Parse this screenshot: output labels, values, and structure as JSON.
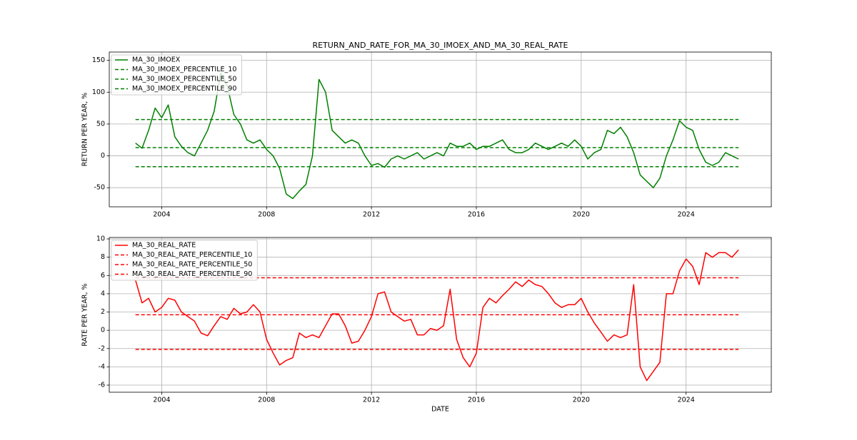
{
  "chart_data": [
    {
      "type": "line",
      "title": "RETURN_AND_RATE_FOR_MA_30_IMOEX_AND_MA_30_REAL_RATE",
      "ylabel": "RETURN PER YEAR, %",
      "xlim": [
        2002.0,
        2027.25
      ],
      "xticks": [
        2004,
        2008,
        2012,
        2016,
        2020,
        2024
      ],
      "ylim": [
        -80,
        163
      ],
      "yticks": [
        -50,
        0,
        50,
        100,
        150
      ],
      "grid": true,
      "legend": "upper left",
      "x": [
        2003.0,
        2003.25,
        2003.5,
        2003.75,
        2004.0,
        2004.25,
        2004.5,
        2004.75,
        2005.0,
        2005.25,
        2005.5,
        2005.75,
        2006.0,
        2006.25,
        2006.5,
        2006.75,
        2007.0,
        2007.25,
        2007.5,
        2007.75,
        2008.0,
        2008.25,
        2008.5,
        2008.75,
        2009.0,
        2009.25,
        2009.5,
        2009.75,
        2010.0,
        2010.25,
        2010.5,
        2010.75,
        2011.0,
        2011.25,
        2011.5,
        2011.75,
        2012.0,
        2012.25,
        2012.5,
        2012.75,
        2013.0,
        2013.25,
        2013.5,
        2013.75,
        2014.0,
        2014.25,
        2014.5,
        2014.75,
        2015.0,
        2015.25,
        2015.5,
        2015.75,
        2016.0,
        2016.25,
        2016.5,
        2016.75,
        2017.0,
        2017.25,
        2017.5,
        2017.75,
        2018.0,
        2018.25,
        2018.5,
        2018.75,
        2019.0,
        2019.25,
        2019.5,
        2019.75,
        2020.0,
        2020.25,
        2020.5,
        2020.75,
        2021.0,
        2021.25,
        2021.5,
        2021.75,
        2022.0,
        2022.25,
        2022.5,
        2022.75,
        2023.0,
        2023.25,
        2023.5,
        2023.75,
        2024.0,
        2024.25,
        2024.5,
        2024.75,
        2025.0,
        2025.25,
        2025.5,
        2025.75,
        2026.0
      ],
      "series": [
        {
          "name": "MA_30_IMOEX",
          "color": "#008000",
          "linestyle": "solid",
          "values": [
            20,
            12,
            40,
            75,
            60,
            80,
            30,
            15,
            5,
            0,
            20,
            40,
            70,
            130,
            110,
            65,
            50,
            25,
            20,
            25,
            10,
            0,
            -20,
            -60,
            -67,
            -55,
            -45,
            0,
            120,
            100,
            40,
            30,
            20,
            25,
            20,
            0,
            -15,
            -12,
            -18,
            -5,
            0,
            -5,
            0,
            5,
            -5,
            0,
            5,
            0,
            20,
            15,
            15,
            20,
            10,
            15,
            15,
            20,
            25,
            10,
            5,
            5,
            10,
            20,
            15,
            10,
            15,
            20,
            15,
            25,
            15,
            -5,
            5,
            10,
            40,
            35,
            45,
            30,
            5,
            -30,
            -40,
            -50,
            -35,
            0,
            25,
            55,
            45,
            40,
            10,
            -10,
            -15,
            -10,
            5,
            0,
            -5
          ]
        },
        {
          "name": "MA_30_IMOEX_PERCENTILE_10",
          "color": "#008000",
          "linestyle": "dashed",
          "level": 57
        },
        {
          "name": "MA_30_IMOEX_PERCENTILE_50",
          "color": "#008000",
          "linestyle": "dashed",
          "level": 13
        },
        {
          "name": "MA_30_IMOEX_PERCENTILE_90",
          "color": "#008000",
          "linestyle": "dashed",
          "level": -17
        }
      ]
    },
    {
      "type": "line",
      "xlabel": "DATE",
      "ylabel": "RATE PER YEAR, %",
      "xlim": [
        2002.0,
        2027.25
      ],
      "xticks": [
        2004,
        2008,
        2012,
        2016,
        2020,
        2024
      ],
      "ylim": [
        -6.78,
        10.16
      ],
      "yticks": [
        -6,
        -4,
        -2,
        0,
        2,
        4,
        6,
        8,
        10
      ],
      "grid": true,
      "legend": "upper left",
      "x": [
        2003.0,
        2003.25,
        2003.5,
        2003.75,
        2004.0,
        2004.25,
        2004.5,
        2004.75,
        2005.0,
        2005.25,
        2005.5,
        2005.75,
        2006.0,
        2006.25,
        2006.5,
        2006.75,
        2007.0,
        2007.25,
        2007.5,
        2007.75,
        2008.0,
        2008.25,
        2008.5,
        2008.75,
        2009.0,
        2009.25,
        2009.5,
        2009.75,
        2010.0,
        2010.25,
        2010.5,
        2010.75,
        2011.0,
        2011.25,
        2011.5,
        2011.75,
        2012.0,
        2012.25,
        2012.5,
        2012.75,
        2013.0,
        2013.25,
        2013.5,
        2013.75,
        2014.0,
        2014.25,
        2014.5,
        2014.75,
        2015.0,
        2015.25,
        2015.5,
        2015.75,
        2016.0,
        2016.25,
        2016.5,
        2016.75,
        2017.0,
        2017.25,
        2017.5,
        2017.75,
        2018.0,
        2018.25,
        2018.5,
        2018.75,
        2019.0,
        2019.25,
        2019.5,
        2019.75,
        2020.0,
        2020.25,
        2020.5,
        2020.75,
        2021.0,
        2021.25,
        2021.5,
        2021.75,
        2022.0,
        2022.25,
        2022.5,
        2022.75,
        2023.0,
        2023.25,
        2023.5,
        2023.75,
        2024.0,
        2024.25,
        2024.5,
        2024.75,
        2025.0,
        2025.25,
        2025.5,
        2025.75,
        2026.0
      ],
      "series": [
        {
          "name": "MA_30_REAL_RATE",
          "color": "#ff0000",
          "linestyle": "solid",
          "values": [
            5.5,
            3,
            3.5,
            2,
            2.5,
            3.5,
            3.3,
            2,
            1.5,
            1,
            -0.3,
            -0.6,
            0.5,
            1.5,
            1.2,
            2.4,
            1.8,
            2,
            2.8,
            2,
            -1,
            -2.5,
            -3.8,
            -3.3,
            -3,
            -0.3,
            -0.8,
            -0.5,
            -0.8,
            0.5,
            1.8,
            1.8,
            0.5,
            -1.4,
            -1.2,
            0,
            1.5,
            4,
            4.2,
            2,
            1.5,
            1,
            1.2,
            -0.5,
            -0.5,
            0.2,
            0,
            0.5,
            4.5,
            -1,
            -3,
            -4,
            -2.5,
            2.5,
            3.5,
            3,
            3.8,
            4.5,
            5.3,
            4.8,
            5.5,
            5,
            4.8,
            4,
            3,
            2.5,
            2.8,
            2.8,
            3.5,
            2,
            0.8,
            -0.2,
            -1.2,
            -0.5,
            -0.8,
            -0.5,
            5,
            -4,
            -5.5,
            -4.5,
            -3.5,
            4,
            4,
            6.5,
            7.8,
            7,
            5,
            8.5,
            8,
            8.5,
            8.5,
            8,
            8.8
          ]
        },
        {
          "name": "MA_30_REAL_RATE_PERCENTILE_10",
          "color": "#ff0000",
          "linestyle": "dashed",
          "level": 5.75
        },
        {
          "name": "MA_30_REAL_RATE_PERCENTILE_50",
          "color": "#ff0000",
          "linestyle": "dashed",
          "level": 1.7
        },
        {
          "name": "MA_30_REAL_RATE_PERCENTILE_90",
          "color": "#ff0000",
          "linestyle": "dashed",
          "level": -2.1
        }
      ]
    }
  ]
}
